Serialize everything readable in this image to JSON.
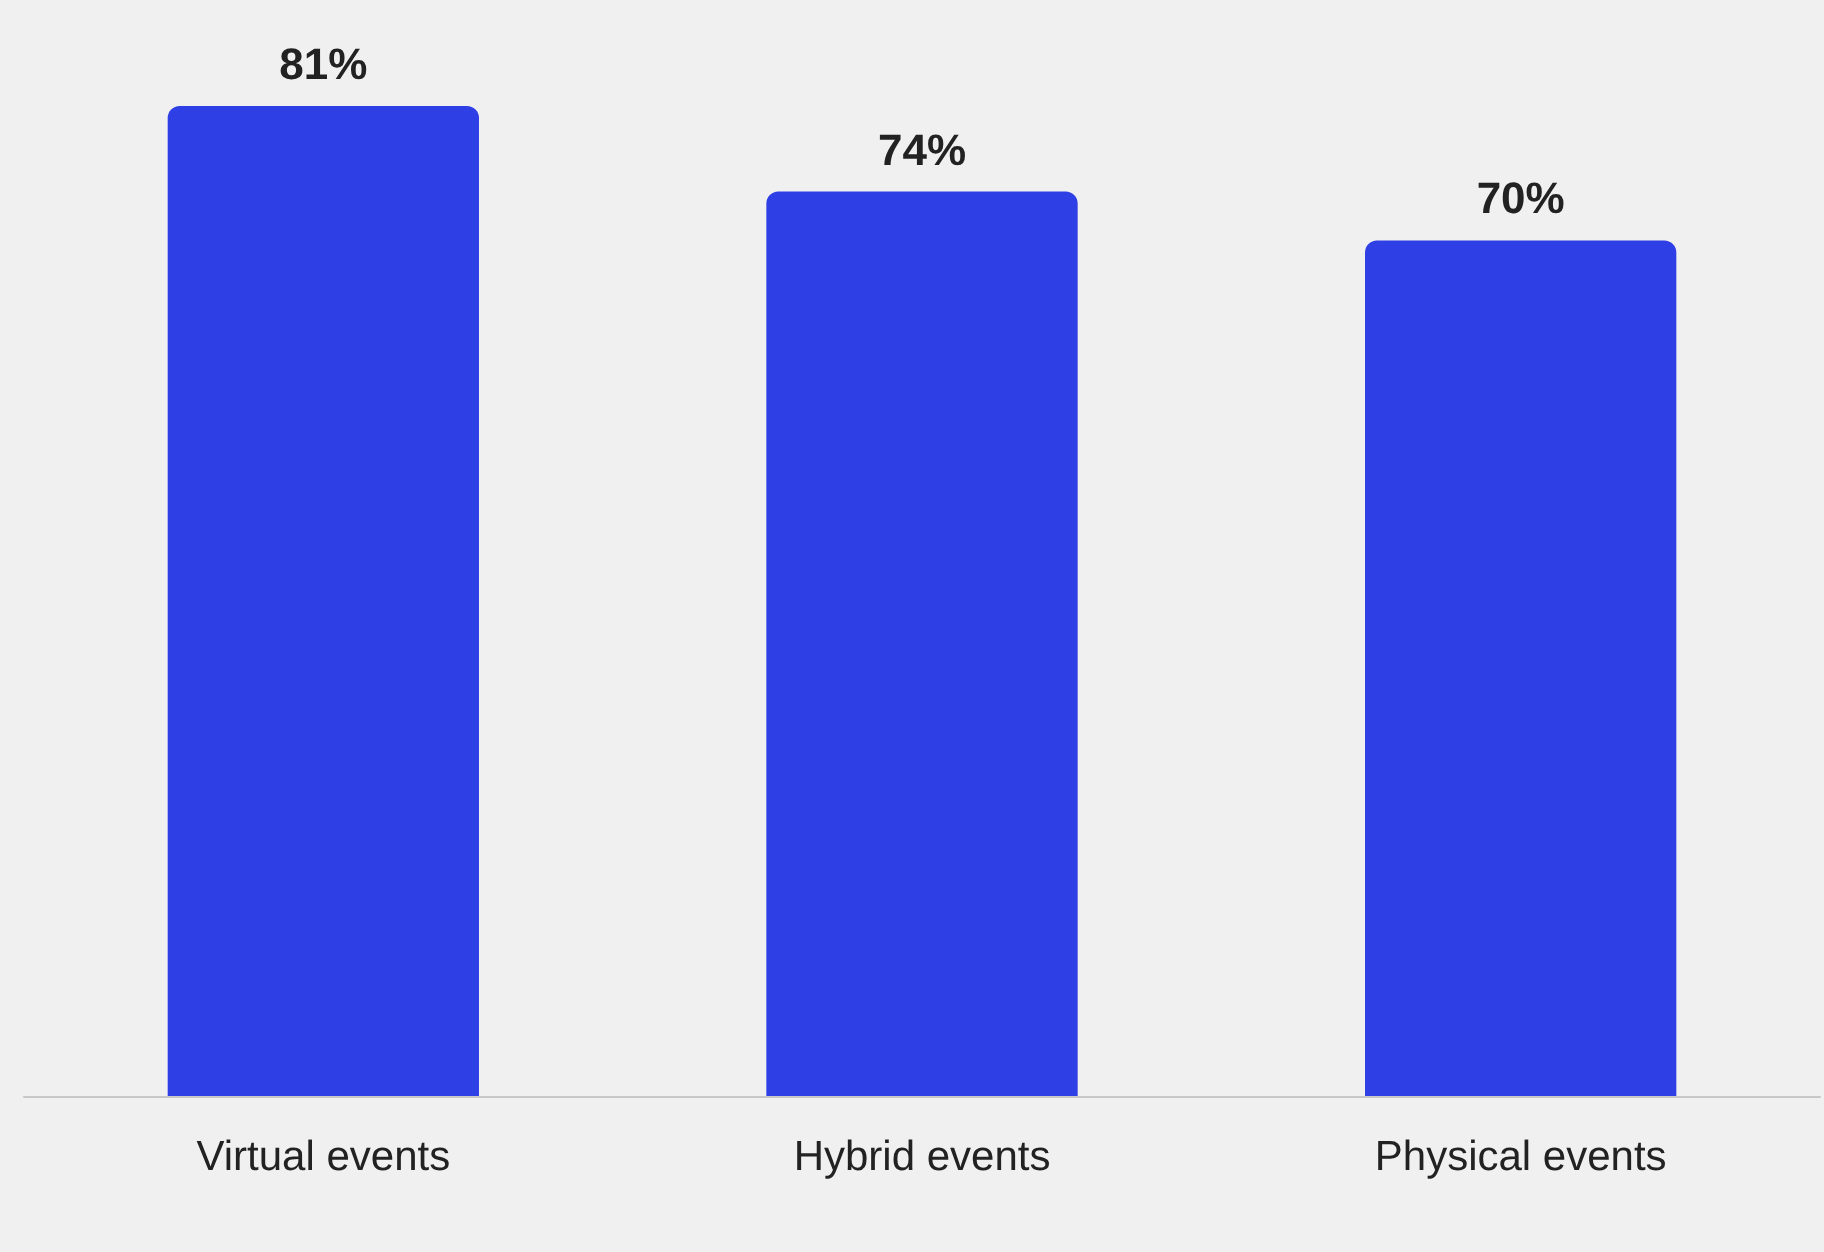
{
  "chart_data": {
    "type": "bar",
    "categories": [
      "Virtual events",
      "Hybrid events",
      "Physical events"
    ],
    "values": [
      81,
      74,
      70
    ],
    "value_labels": [
      "81%",
      "74%",
      "70%"
    ],
    "color": "#2f3fe6"
  }
}
